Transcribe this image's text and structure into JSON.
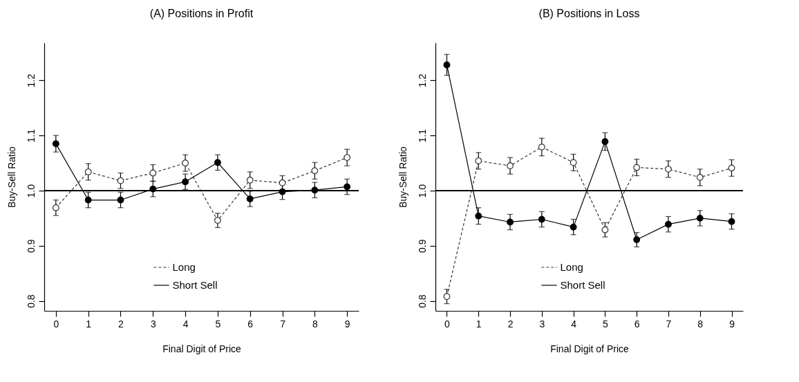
{
  "chart_data": [
    {
      "type": "line",
      "title": "(A) Positions in Profit",
      "xlabel": "Final Digit of Price",
      "ylabel": "Buy-Sell Ratio",
      "x": [
        0,
        1,
        2,
        3,
        4,
        5,
        6,
        7,
        8,
        9
      ],
      "series": [
        {
          "name": "Long",
          "color": "#333333",
          "line_style": "dashed",
          "marker": "circle",
          "values": [
            0.969,
            1.034,
            1.018,
            1.032,
            1.05,
            0.946,
            1.019,
            1.014,
            1.036,
            1.06
          ],
          "errors": [
            0.014,
            0.015,
            0.014,
            0.015,
            0.015,
            0.013,
            0.015,
            0.013,
            0.015,
            0.015
          ]
        },
        {
          "name": "Short Sell",
          "color": "#000000",
          "line_style": "solid",
          "marker": "circle",
          "values": [
            1.085,
            0.983,
            0.983,
            1.003,
            1.016,
            1.051,
            0.985,
            0.998,
            1.001,
            1.007
          ],
          "errors": [
            0.015,
            0.014,
            0.014,
            0.014,
            0.014,
            0.014,
            0.014,
            0.014,
            0.014,
            0.014
          ]
        }
      ],
      "xlim": [
        -0.36,
        9.36
      ],
      "xticks": [
        0,
        1,
        2,
        3,
        4,
        5,
        6,
        7,
        8,
        9
      ],
      "ylim": [
        0.782,
        1.268
      ],
      "yticks": [
        0.8,
        0.9,
        {
          "value": 1,
          "label": "1.0"
        },
        1.1,
        1.2
      ],
      "ref_lines": [
        {
          "axis": "y",
          "value": 1,
          "label": null,
          "color": "#000000"
        }
      ],
      "legend": "bottom",
      "grid": false
    },
    {
      "type": "line",
      "title": "(B) Positions in Loss",
      "xlabel": "Final Digit of Price",
      "ylabel": "Buy-Sell Ratio",
      "x": [
        0,
        1,
        2,
        3,
        4,
        5,
        6,
        7,
        8,
        9
      ],
      "series": [
        {
          "name": "Long",
          "color": "#333333",
          "line_style": "dashed",
          "marker": "circle",
          "values": [
            0.808,
            1.054,
            1.045,
            1.079,
            1.051,
            0.929,
            1.042,
            1.039,
            1.024,
            1.041
          ],
          "errors": [
            0.013,
            0.015,
            0.015,
            0.016,
            0.015,
            0.013,
            0.015,
            0.015,
            0.015,
            0.015
          ]
        },
        {
          "name": "Short Sell",
          "color": "#000000",
          "line_style": "solid",
          "marker": "circle",
          "values": [
            1.228,
            0.954,
            0.943,
            0.948,
            0.934,
            1.089,
            0.911,
            0.939,
            0.95,
            0.944
          ],
          "errors": [
            0.019,
            0.015,
            0.014,
            0.014,
            0.014,
            0.016,
            0.013,
            0.014,
            0.014,
            0.014
          ]
        }
      ],
      "xlim": [
        -0.36,
        9.36
      ],
      "xticks": [
        0,
        1,
        2,
        3,
        4,
        5,
        6,
        7,
        8,
        9
      ],
      "ylim": [
        0.782,
        1.268
      ],
      "yticks": [
        0.8,
        0.9,
        {
          "value": 1,
          "label": "1.0"
        },
        1.1,
        1.2
      ],
      "ref_lines": [
        {
          "axis": "y",
          "value": 1,
          "label": null,
          "color": "#000000"
        }
      ],
      "legend": "bottom",
      "grid": false
    }
  ]
}
